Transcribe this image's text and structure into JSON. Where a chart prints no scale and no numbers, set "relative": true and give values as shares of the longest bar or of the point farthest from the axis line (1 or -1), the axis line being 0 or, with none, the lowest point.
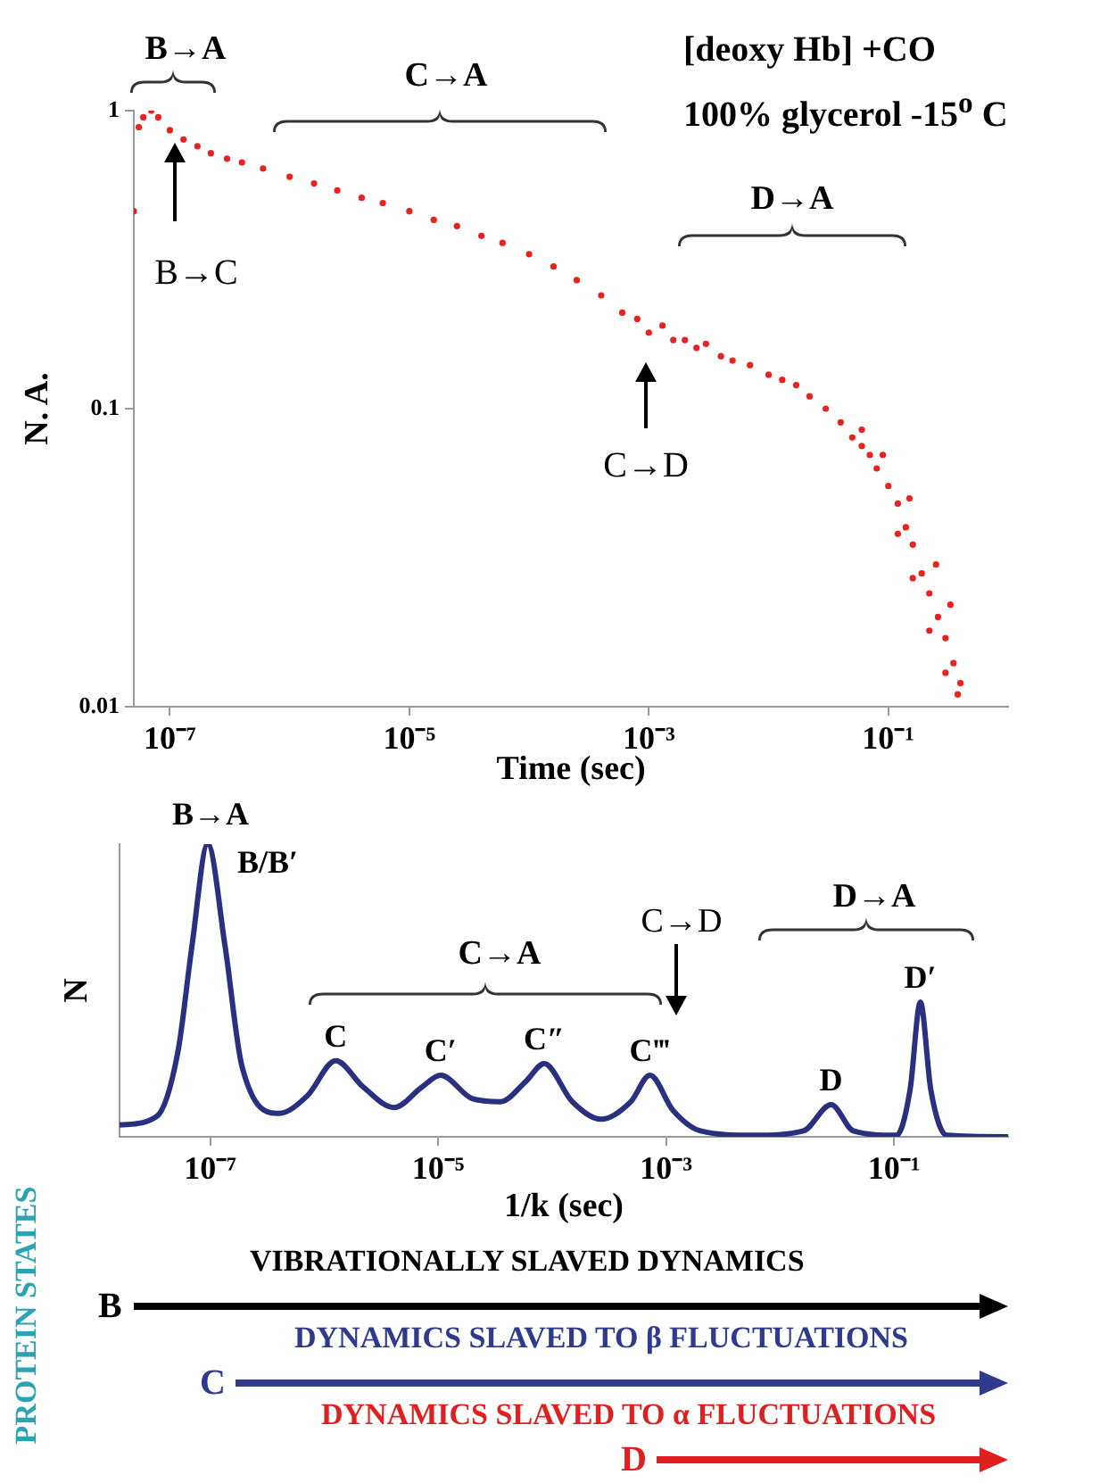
{
  "chart_data": [
    {
      "type": "scatter",
      "xlabel": "Time (sec)",
      "ylabel": "N. A.",
      "log": "xy",
      "color": "#e8231f",
      "marker": "circle",
      "xlim": [
        5e-08,
        1
      ],
      "xticks": [
        {
          "value": 1e-07,
          "label": "10⁻⁷"
        },
        {
          "value": 1e-05,
          "label": "10⁻⁵"
        },
        {
          "value": 0.001,
          "label": "10⁻³"
        },
        {
          "value": 0.1,
          "label": "10⁻¹"
        }
      ],
      "ylim": [
        0.01,
        1
      ],
      "yticks": [
        1,
        0.1,
        0.01
      ],
      "x": [
        5e-08,
        5.5e-08,
        6e-08,
        7e-08,
        8e-08,
        1e-07,
        1.3e-07,
        1.7e-07,
        2.2e-07,
        3e-07,
        4e-07,
        6e-07,
        1e-06,
        1.6e-06,
        2.5e-06,
        4e-06,
        6e-06,
        1e-05,
        1.6e-05,
        2.5e-05,
        4e-05,
        6e-05,
        0.0001,
        0.00016,
        0.00025,
        0.0004,
        0.0006,
        0.0008,
        0.001,
        0.0013,
        0.0016,
        0.002,
        0.0025,
        0.003,
        0.004,
        0.005,
        0.007,
        0.01,
        0.013,
        0.017,
        0.022,
        0.03,
        0.04,
        0.05,
        0.06,
        0.07,
        0.08,
        0.1,
        0.12,
        0.12,
        0.14,
        0.16,
        0.16,
        0.19,
        0.22,
        0.22,
        0.26,
        0.3,
        0.3,
        0.35,
        0.38,
        0.4,
        0.33,
        0.25,
        0.15,
        0.09,
        0.06
      ],
      "values": [
        0.46,
        0.88,
        0.95,
        1,
        0.95,
        0.86,
        0.8,
        0.76,
        0.72,
        0.69,
        0.67,
        0.64,
        0.6,
        0.57,
        0.54,
        0.51,
        0.49,
        0.46,
        0.43,
        0.41,
        0.38,
        0.36,
        0.33,
        0.3,
        0.27,
        0.24,
        0.21,
        0.2,
        0.18,
        0.19,
        0.17,
        0.17,
        0.16,
        0.165,
        0.15,
        0.145,
        0.14,
        0.13,
        0.125,
        0.12,
        0.11,
        0.1,
        0.09,
        0.08,
        0.075,
        0.07,
        0.063,
        0.055,
        0.048,
        0.038,
        0.04,
        0.035,
        0.027,
        0.028,
        0.024,
        0.018,
        0.02,
        0.017,
        0.013,
        0.014,
        0.011,
        0.012,
        0.022,
        0.03,
        0.05,
        0.07,
        0.085
      ],
      "annotations": [
        "[deoxy Hb] +CO",
        "100% glycerol -15$^{o}$ C",
        "B→A",
        "C→A",
        "D→A",
        "B→C",
        "C→D"
      ]
    },
    {
      "type": "line",
      "xlabel": "1/k (sec)",
      "ylabel": "N",
      "log": "x",
      "relative": true,
      "tick_labels": "x",
      "color": "#28307f",
      "xlim": [
        1.6e-08,
        1
      ],
      "xticks": [
        {
          "value": 1e-07,
          "label": "10⁻⁷"
        },
        {
          "value": 1e-05,
          "label": "10⁻⁵"
        },
        {
          "value": 0.001,
          "label": "10⁻³"
        },
        {
          "value": 0.1,
          "label": "10⁻¹"
        }
      ],
      "x": [
        1.6e-08,
        3.4e-08,
        5.2e-08,
        6.9e-08,
        9.5e-08,
        1.35e-07,
        1.9e-07,
        4e-07,
        7.1e-07,
        1.26e-06,
        2.2e-06,
        4.1e-06,
        7.2e-06,
        1.05e-05,
        2e-05,
        3.5e-05,
        5.9e-05,
        8.5e-05,
        0.00015,
        0.00027,
        0.00049,
        0.00072,
        0.00115,
        0.002,
        0.0058,
        0.016,
        0.028,
        0.044,
        0.105,
        0.138,
        0.17,
        0.21,
        0.29,
        1
      ],
      "values": [
        0.04,
        0.07,
        0.29,
        0.65,
        1,
        0.65,
        0.24,
        0.08,
        0.14,
        0.26,
        0.17,
        0.1,
        0.17,
        0.21,
        0.13,
        0.12,
        0.19,
        0.25,
        0.12,
        0.06,
        0.12,
        0.21,
        0.09,
        0.02,
        0.005,
        0.02,
        0.11,
        0.02,
        0.005,
        0.16,
        0.46,
        0.16,
        0.005,
        0
      ],
      "annotations": [
        "B→A",
        "B/B′",
        "C→A",
        "C→D",
        "D→A",
        {
          "text": "C",
          "x": 1.26e-06,
          "y": 0.26
        },
        {
          "text": "C′",
          "x": 1.05e-05,
          "y": 0.21
        },
        {
          "text": "C″",
          "x": 8.5e-05,
          "y": 0.25
        },
        {
          "text": "C‴",
          "x": 0.00072,
          "y": 0.21
        },
        {
          "text": "D",
          "x": 0.028,
          "y": 0.11
        },
        {
          "text": "D′",
          "x": 0.17,
          "y": 0.46
        }
      ]
    },
    {
      "type": "other",
      "colors": [
        "#000000",
        "#2e3a8c",
        "#e02020"
      ],
      "annotations": [
        "PROTEIN STATES",
        "VIBRATIONALLY SLAVED DYNAMICS",
        "B",
        "DYNAMICS SLAVED TO β FLUCTUATIONS",
        "C",
        "DYNAMICS SLAVED TO α FLUCTUATIONS",
        "D"
      ]
    }
  ]
}
